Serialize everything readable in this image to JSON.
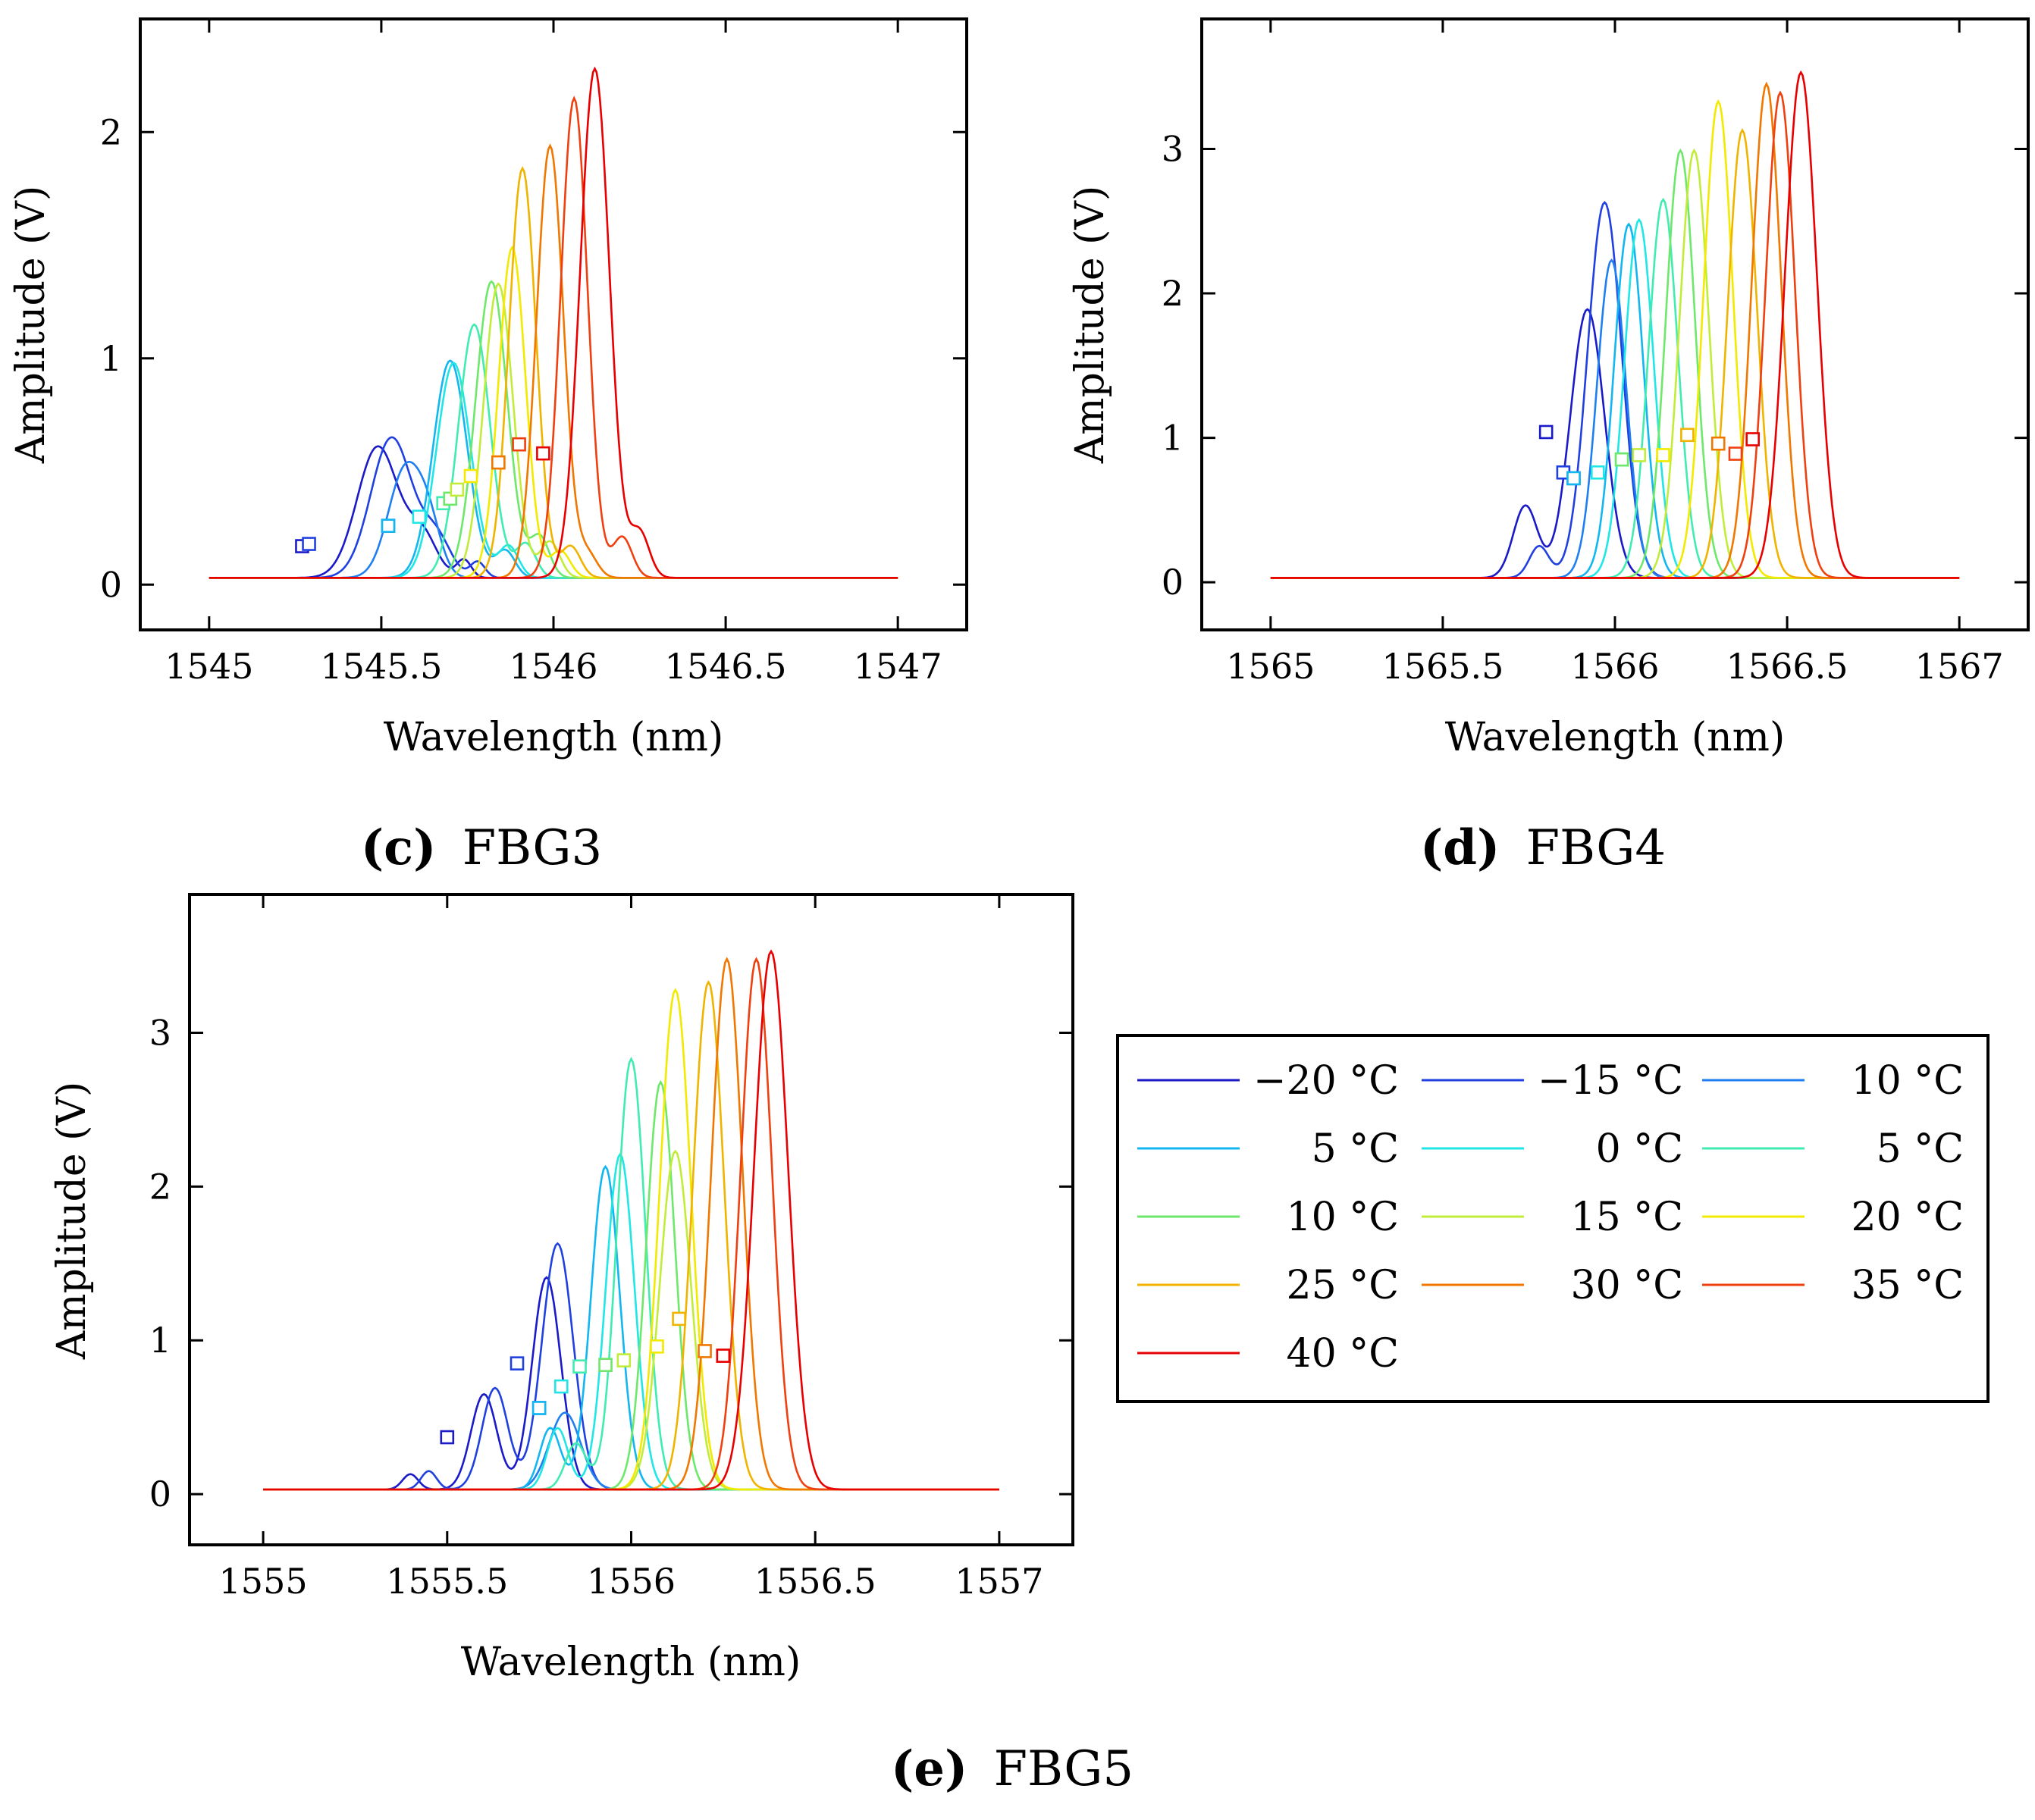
{
  "legend": {
    "entries": [
      "−20 °C",
      "−15 °C",
      "10 °C",
      "5 °C",
      "0 °C",
      "5 °C",
      "10 °C",
      "15 °C",
      "20 °C",
      "25 °C",
      "30 °C",
      "35 °C",
      "40 °C"
    ],
    "colors": [
      "#1a1ac8",
      "#2040e0",
      "#1f7ff0",
      "#12b6f0",
      "#20e6e6",
      "#40ecb0",
      "#6ee86a",
      "#c2ec3a",
      "#f2ea00",
      "#f0b400",
      "#f07800",
      "#ee4010",
      "#e80000"
    ]
  },
  "chart_data": [
    {
      "type": "line",
      "id": "fbg3",
      "caption_letter": "(c)",
      "caption_text": "FBG3",
      "xlabel": "Wavelength (nm)",
      "ylabel": "Amplitude (V)",
      "xlim": [
        1544.8,
        1547.2
      ],
      "ylim": [
        -0.2,
        2.5
      ],
      "xticks": [
        1545,
        1545.5,
        1546,
        1546.5,
        1547
      ],
      "xtick_labels": [
        "1545",
        "1545.5",
        "1546",
        "1546.5",
        "1547"
      ],
      "yticks": [
        0,
        1,
        2
      ],
      "ytick_labels": [
        "0",
        "1",
        "2"
      ],
      "x_range": [
        1545,
        1547
      ],
      "baseline": 0.03,
      "series": [
        {
          "name": "−20 °C",
          "peaks": [
            [
              1545.49,
              0.58,
              0.085
            ],
            [
              1545.62,
              0.18,
              0.06
            ],
            [
              1545.74,
              0.08,
              0.03
            ]
          ],
          "marker": [
            1545.27,
            0.17
          ]
        },
        {
          "name": "−15 °C",
          "peaks": [
            [
              1545.53,
              0.62,
              0.085
            ],
            [
              1545.66,
              0.17,
              0.06
            ],
            [
              1545.78,
              0.07,
              0.03
            ]
          ],
          "marker": [
            1545.29,
            0.18
          ]
        },
        {
          "name": "10 °C",
          "peaks": [
            [
              1545.57,
              0.48,
              0.07
            ],
            [
              1545.64,
              0.18,
              0.05
            ]
          ],
          "marker": [
            1545.52,
            0.26
          ]
        },
        {
          "name": "5 °C",
          "peaks": [
            [
              1545.7,
              0.96,
              0.07
            ],
            [
              1545.86,
              0.12,
              0.04
            ]
          ],
          "marker": [
            1545.52,
            0.26
          ]
        },
        {
          "name": "0 °C",
          "peaks": [
            [
              1545.71,
              0.95,
              0.07
            ],
            [
              1545.87,
              0.14,
              0.04
            ]
          ],
          "marker": [
            1545.61,
            0.3
          ]
        },
        {
          "name": "5 °C",
          "peaks": [
            [
              1545.77,
              1.12,
              0.065
            ],
            [
              1545.92,
              0.15,
              0.04
            ]
          ],
          "marker": [
            1545.68,
            0.36
          ]
        },
        {
          "name": "10 °C",
          "peaks": [
            [
              1545.82,
              1.31,
              0.065
            ],
            [
              1545.96,
              0.18,
              0.04
            ]
          ],
          "marker": [
            1545.7,
            0.38
          ]
        },
        {
          "name": "15 °C",
          "peaks": [
            [
              1545.84,
              1.3,
              0.06
            ],
            [
              1545.99,
              0.16,
              0.04
            ]
          ],
          "marker": [
            1545.72,
            0.42
          ]
        },
        {
          "name": "20 °C",
          "peaks": [
            [
              1545.88,
              1.46,
              0.055
            ],
            [
              1546.02,
              0.12,
              0.04
            ]
          ],
          "marker": [
            1545.76,
            0.48
          ]
        },
        {
          "name": "25 °C",
          "peaks": [
            [
              1545.91,
              1.81,
              0.055
            ],
            [
              1546.05,
              0.14,
              0.04
            ]
          ],
          "marker": [
            1545.84,
            0.54
          ]
        },
        {
          "name": "30 °C",
          "peaks": [
            [
              1545.99,
              1.91,
              0.055
            ],
            [
              1546.1,
              0.1,
              0.04
            ]
          ],
          "marker": [
            1545.84,
            0.54
          ]
        },
        {
          "name": "35 °C",
          "peaks": [
            [
              1546.06,
              2.12,
              0.055
            ],
            [
              1546.2,
              0.18,
              0.04
            ]
          ],
          "marker": [
            1545.9,
            0.62
          ]
        },
        {
          "name": "40 °C",
          "peaks": [
            [
              1546.12,
              2.25,
              0.06
            ],
            [
              1546.25,
              0.2,
              0.04
            ]
          ],
          "marker": [
            1545.97,
            0.58
          ]
        }
      ]
    },
    {
      "type": "line",
      "id": "fbg4",
      "caption_letter": "(d)",
      "caption_text": "FBG4",
      "xlabel": "Wavelength (nm)",
      "ylabel": "Amplitude (V)",
      "xlim": [
        1564.8,
        1567.2
      ],
      "ylim": [
        -0.33,
        3.9
      ],
      "xticks": [
        1565,
        1565.5,
        1566,
        1566.5,
        1567
      ],
      "xtick_labels": [
        "1565",
        "1565.5",
        "1566",
        "1566.5",
        "1567"
      ],
      "yticks": [
        0,
        1,
        2,
        3
      ],
      "ytick_labels": [
        "0",
        "1",
        "2",
        "3"
      ],
      "x_range": [
        1565,
        1567
      ],
      "baseline": 0.03,
      "series": [
        {
          "name": "−20 °C",
          "peaks": [
            [
              1565.92,
              1.86,
              0.07
            ],
            [
              1565.74,
              0.5,
              0.05
            ]
          ],
          "marker": [
            1565.8,
            1.04
          ]
        },
        {
          "name": "−15 °C",
          "peaks": [
            [
              1565.97,
              2.6,
              0.07
            ],
            [
              1565.78,
              0.22,
              0.04
            ]
          ],
          "marker": [
            1565.85,
            0.76
          ]
        },
        {
          "name": "10 °C",
          "peaks": [
            [
              1565.99,
              2.2,
              0.06
            ]
          ],
          "marker": [
            1565.88,
            0.72
          ]
        },
        {
          "name": "5 °C",
          "peaks": [
            [
              1566.04,
              2.45,
              0.06
            ]
          ],
          "marker": [
            1565.88,
            0.72
          ]
        },
        {
          "name": "0 °C",
          "peaks": [
            [
              1566.07,
              2.48,
              0.06
            ]
          ],
          "marker": [
            1565.95,
            0.76
          ]
        },
        {
          "name": "5 °C",
          "peaks": [
            [
              1566.14,
              2.62,
              0.06
            ]
          ],
          "marker": [
            1566.02,
            0.85
          ]
        },
        {
          "name": "10 °C",
          "peaks": [
            [
              1566.19,
              2.96,
              0.06
            ]
          ],
          "marker": [
            1566.02,
            0.85
          ]
        },
        {
          "name": "15 °C",
          "peaks": [
            [
              1566.23,
              2.96,
              0.06
            ]
          ],
          "marker": [
            1566.07,
            0.88
          ]
        },
        {
          "name": "20 °C",
          "peaks": [
            [
              1566.3,
              3.3,
              0.06
            ]
          ],
          "marker": [
            1566.14,
            0.88
          ]
        },
        {
          "name": "25 °C",
          "peaks": [
            [
              1566.37,
              3.1,
              0.06
            ]
          ],
          "marker": [
            1566.21,
            1.02
          ]
        },
        {
          "name": "30 °C",
          "peaks": [
            [
              1566.44,
              3.42,
              0.06
            ]
          ],
          "marker": [
            1566.3,
            0.96
          ]
        },
        {
          "name": "35 °C",
          "peaks": [
            [
              1566.48,
              3.36,
              0.06
            ]
          ],
          "marker": [
            1566.35,
            0.89
          ]
        },
        {
          "name": "40 °C",
          "peaks": [
            [
              1566.54,
              3.5,
              0.065
            ]
          ],
          "marker": [
            1566.4,
            0.99
          ]
        }
      ]
    },
    {
      "type": "line",
      "id": "fbg5",
      "caption_letter": "(e)",
      "caption_text": "FBG5",
      "xlabel": "Wavelength (nm)",
      "ylabel": "Amplitude (V)",
      "xlim": [
        1554.8,
        1557.2
      ],
      "ylim": [
        -0.33,
        3.9
      ],
      "xticks": [
        1555,
        1555.5,
        1556,
        1556.5,
        1557
      ],
      "xtick_labels": [
        "1555",
        "1555.5",
        "1556",
        "1556.5",
        "1557"
      ],
      "yticks": [
        0,
        1,
        2,
        3
      ],
      "ytick_labels": [
        "0",
        "1",
        "2",
        "3"
      ],
      "x_range": [
        1555,
        1557
      ],
      "baseline": 0.03,
      "series": [
        {
          "name": "−20 °C",
          "peaks": [
            [
              1555.77,
              1.38,
              0.055
            ],
            [
              1555.6,
              0.62,
              0.05
            ],
            [
              1555.4,
              0.1,
              0.03
            ]
          ],
          "marker": [
            1555.5,
            0.37
          ]
        },
        {
          "name": "−15 °C",
          "peaks": [
            [
              1555.8,
              1.6,
              0.06
            ],
            [
              1555.63,
              0.66,
              0.05
            ],
            [
              1555.45,
              0.12,
              0.03
            ]
          ],
          "marker": [
            1555.69,
            0.85
          ]
        },
        {
          "name": "10 °C",
          "peaks": [
            [
              1555.82,
              0.5,
              0.06
            ]
          ],
          "marker": [
            1555.75,
            0.56
          ]
        },
        {
          "name": "5 °C",
          "peaks": [
            [
              1555.93,
              2.1,
              0.055
            ],
            [
              1555.78,
              0.4,
              0.04
            ]
          ],
          "marker": [
            1555.75,
            0.56
          ]
        },
        {
          "name": "0 °C",
          "peaks": [
            [
              1555.97,
              2.18,
              0.055
            ],
            [
              1555.8,
              0.4,
              0.04
            ]
          ],
          "marker": [
            1555.81,
            0.7
          ]
        },
        {
          "name": "5 °C",
          "peaks": [
            [
              1556.0,
              2.8,
              0.055
            ],
            [
              1555.85,
              0.3,
              0.04
            ]
          ],
          "marker": [
            1555.86,
            0.83
          ]
        },
        {
          "name": "10 °C",
          "peaks": [
            [
              1556.08,
              2.65,
              0.055
            ]
          ],
          "marker": [
            1555.93,
            0.84
          ]
        },
        {
          "name": "15 °C",
          "peaks": [
            [
              1556.12,
              2.2,
              0.06
            ]
          ],
          "marker": [
            1555.98,
            0.87
          ]
        },
        {
          "name": "20 °C",
          "peaks": [
            [
              1556.12,
              3.25,
              0.06
            ]
          ],
          "marker": [
            1556.07,
            0.96
          ]
        },
        {
          "name": "25 °C",
          "peaks": [
            [
              1556.21,
              3.3,
              0.06
            ]
          ],
          "marker": [
            1556.13,
            1.14
          ]
        },
        {
          "name": "30 °C",
          "peaks": [
            [
              1556.26,
              3.45,
              0.06
            ]
          ],
          "marker": [
            1556.2,
            0.93
          ]
        },
        {
          "name": "35 °C",
          "peaks": [
            [
              1556.34,
              3.45,
              0.06
            ]
          ],
          "marker": [
            1556.25,
            0.9
          ]
        },
        {
          "name": "40 °C",
          "peaks": [
            [
              1556.38,
              3.5,
              0.065
            ]
          ],
          "marker": [
            1556.25,
            0.9
          ]
        }
      ]
    }
  ]
}
